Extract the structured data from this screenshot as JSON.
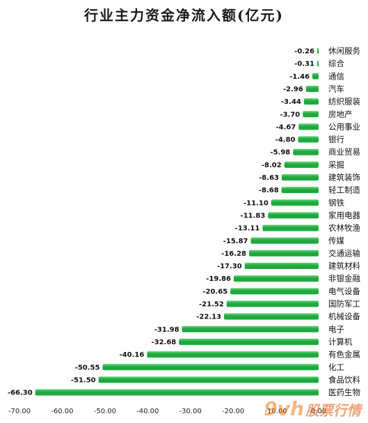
{
  "chart_data": {
    "type": "bar",
    "orientation": "horizontal",
    "title": "行业主力资金净流入额(亿元)",
    "categories": [
      "休闲服务",
      "综合",
      "通信",
      "汽车",
      "纺织服装",
      "房地产",
      "公用事业",
      "银行",
      "商业贸易",
      "采掘",
      "建筑装饰",
      "轻工制造",
      "钢铁",
      "家用电器",
      "农林牧渔",
      "传媒",
      "交通运输",
      "建筑材料",
      "非银金融",
      "电气设备",
      "国防军工",
      "机械设备",
      "电子",
      "计算机",
      "有色金属",
      "化工",
      "食品饮料",
      "医药生物"
    ],
    "values": [
      -0.26,
      -0.31,
      -1.46,
      -2.96,
      -3.44,
      -3.7,
      -4.67,
      -4.8,
      -5.98,
      -8.02,
      -8.63,
      -8.68,
      -11.1,
      -11.83,
      -13.11,
      -15.87,
      -16.28,
      -17.3,
      -19.86,
      -20.65,
      -21.52,
      -22.13,
      -31.98,
      -32.68,
      -40.16,
      -50.55,
      -51.5,
      -66.3
    ],
    "value_labels": [
      "-0.26",
      "-0.31",
      "-1.46",
      "-2.96",
      "-3.44",
      "-3.70",
      "-4.67",
      "-4.80",
      "-5.98",
      "-8.02",
      "-8.63",
      "-8.68",
      "-11.10",
      "-11.83",
      "-13.11",
      "-15.87",
      "-16.28",
      "-17.30",
      "-19.86",
      "-20.65",
      "-21.52",
      "-22.13",
      "-31.98",
      "-32.68",
      "-40.16",
      "-50.55",
      "-51.50",
      "-66.30"
    ],
    "x_ticks": [
      "-70.00",
      "-60.00",
      "-50.00",
      "-40.00",
      "-30.00",
      "-20.00",
      "-10.00",
      "0.00"
    ],
    "xlim": [
      -70,
      0
    ],
    "grid": false,
    "legend": "none",
    "bar_color": "#1fa83c",
    "bar_highlight_color": "#5fd47a"
  },
  "watermark": {
    "logo": "9vh",
    "text": "股票行情"
  }
}
